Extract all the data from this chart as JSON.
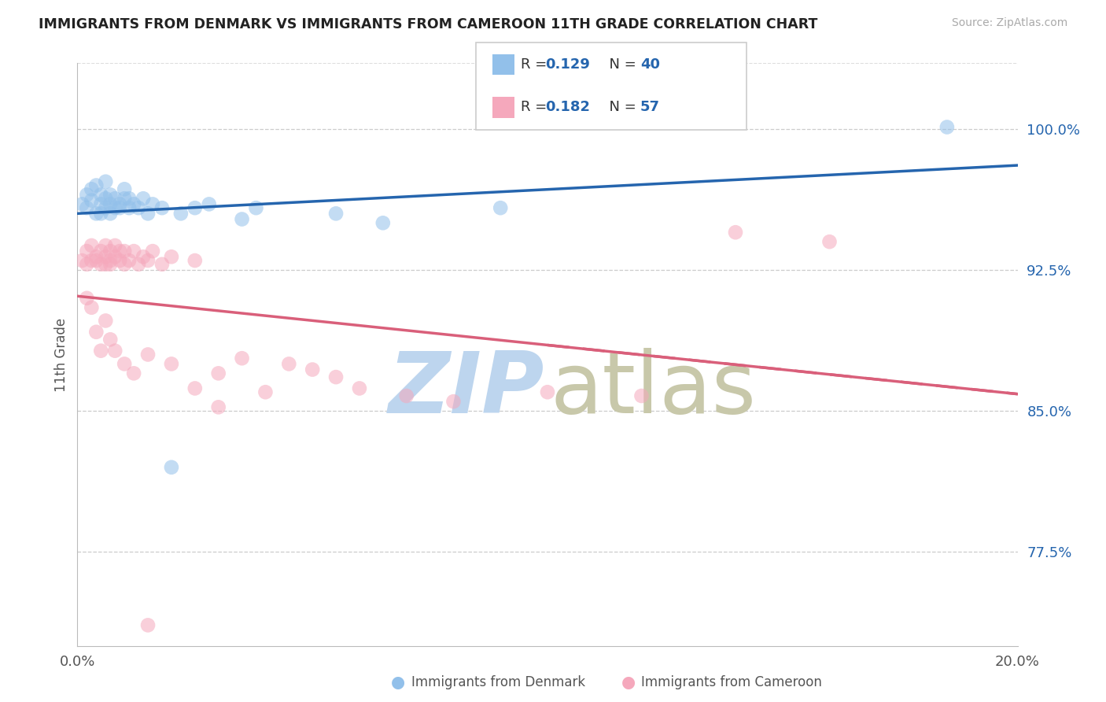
{
  "title": "IMMIGRANTS FROM DENMARK VS IMMIGRANTS FROM CAMEROON 11TH GRADE CORRELATION CHART",
  "source": "Source: ZipAtlas.com",
  "ylabel": "11th Grade",
  "ytick_labels": [
    "77.5%",
    "85.0%",
    "92.5%",
    "100.0%"
  ],
  "ytick_values": [
    0.775,
    0.85,
    0.925,
    1.0
  ],
  "xlim": [
    0.0,
    0.2
  ],
  "ylim": [
    0.725,
    1.035
  ],
  "legend_label1": "Immigrants from Denmark",
  "legend_label2": "Immigrants from Cameroon",
  "color_denmark": "#92C0EA",
  "color_cameroon": "#F5A8BC",
  "line_color_denmark": "#2565AE",
  "line_color_cameroon": "#D95F7A",
  "accent_blue": "#2565AE",
  "denmark_x": [
    0.001,
    0.002,
    0.002,
    0.003,
    0.003,
    0.004,
    0.004,
    0.005,
    0.005,
    0.005,
    0.006,
    0.006,
    0.006,
    0.007,
    0.007,
    0.007,
    0.008,
    0.008,
    0.009,
    0.009,
    0.01,
    0.01,
    0.011,
    0.011,
    0.012,
    0.013,
    0.014,
    0.015,
    0.016,
    0.018,
    0.022,
    0.025,
    0.028,
    0.035,
    0.038,
    0.055,
    0.065,
    0.09,
    0.02,
    0.185
  ],
  "denmark_y": [
    0.96,
    0.965,
    0.958,
    0.962,
    0.968,
    0.955,
    0.97,
    0.96,
    0.965,
    0.955,
    0.958,
    0.972,
    0.963,
    0.96,
    0.955,
    0.965,
    0.958,
    0.963,
    0.96,
    0.958,
    0.963,
    0.968,
    0.958,
    0.963,
    0.96,
    0.958,
    0.963,
    0.955,
    0.96,
    0.958,
    0.955,
    0.958,
    0.96,
    0.952,
    0.958,
    0.955,
    0.95,
    0.958,
    0.82,
    1.001
  ],
  "cameroon_x": [
    0.001,
    0.002,
    0.002,
    0.003,
    0.003,
    0.004,
    0.004,
    0.005,
    0.005,
    0.006,
    0.006,
    0.006,
    0.007,
    0.007,
    0.007,
    0.008,
    0.008,
    0.009,
    0.009,
    0.01,
    0.01,
    0.011,
    0.012,
    0.013,
    0.014,
    0.015,
    0.016,
    0.018,
    0.02,
    0.025,
    0.002,
    0.003,
    0.004,
    0.005,
    0.006,
    0.007,
    0.008,
    0.01,
    0.012,
    0.015,
    0.02,
    0.025,
    0.03,
    0.035,
    0.04,
    0.045,
    0.05,
    0.055,
    0.06,
    0.07,
    0.08,
    0.1,
    0.12,
    0.03,
    0.14,
    0.16,
    0.015
  ],
  "cameroon_y": [
    0.93,
    0.935,
    0.928,
    0.93,
    0.938,
    0.932,
    0.93,
    0.935,
    0.928,
    0.932,
    0.938,
    0.928,
    0.93,
    0.935,
    0.928,
    0.932,
    0.938,
    0.93,
    0.935,
    0.928,
    0.935,
    0.93,
    0.935,
    0.928,
    0.932,
    0.93,
    0.935,
    0.928,
    0.932,
    0.93,
    0.91,
    0.905,
    0.892,
    0.882,
    0.898,
    0.888,
    0.882,
    0.875,
    0.87,
    0.88,
    0.875,
    0.862,
    0.87,
    0.878,
    0.86,
    0.875,
    0.872,
    0.868,
    0.862,
    0.858,
    0.855,
    0.86,
    0.858,
    0.852,
    0.945,
    0.94,
    0.736
  ]
}
